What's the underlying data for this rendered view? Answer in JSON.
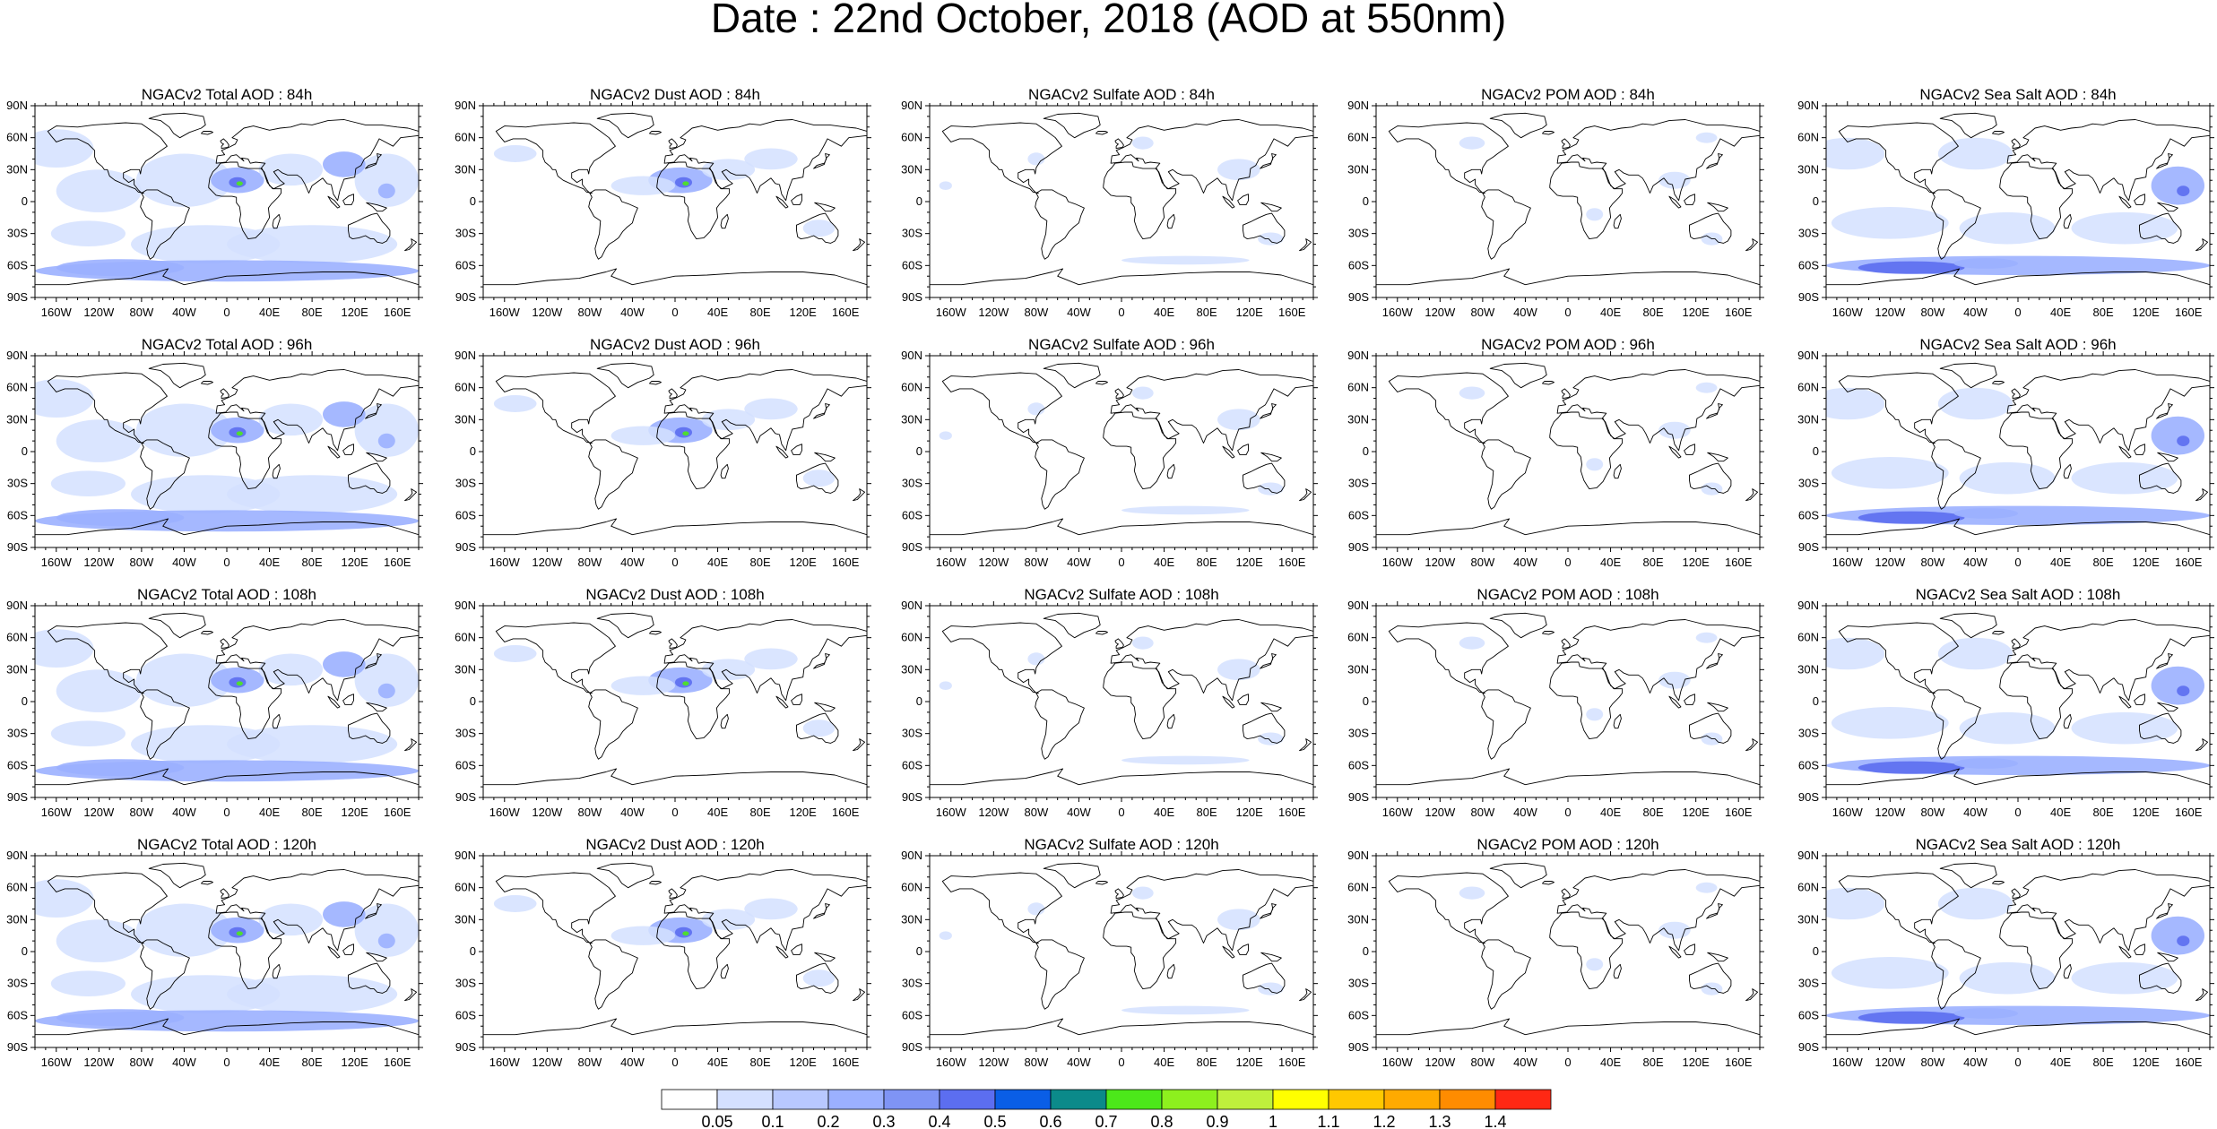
{
  "figure": {
    "title": "Date : 22nd October, 2018 (AOD at 550nm)"
  },
  "axes": {
    "lat_labels": [
      "90N",
      "60N",
      "30N",
      "0",
      "30S",
      "60S",
      "90S"
    ],
    "lon_labels": [
      "160W",
      "120W",
      "80W",
      "40W",
      "0",
      "40E",
      "80E",
      "120E",
      "160E"
    ],
    "lat_range": [
      -90,
      90
    ],
    "lon_range": [
      -180,
      180
    ]
  },
  "columns": [
    "Total",
    "Dust",
    "Sulfate",
    "POM",
    "Sea Salt"
  ],
  "rows": [
    "84h",
    "96h",
    "108h",
    "120h"
  ],
  "panels": [
    {
      "title": "NGACv2 Total AOD : 84h",
      "species": "Total",
      "lead": "84h"
    },
    {
      "title": "NGACv2 Dust AOD : 84h",
      "species": "Dust",
      "lead": "84h"
    },
    {
      "title": "NGACv2 Sulfate AOD : 84h",
      "species": "Sulfate",
      "lead": "84h"
    },
    {
      "title": "NGACv2 POM AOD : 84h",
      "species": "POM",
      "lead": "84h"
    },
    {
      "title": "NGACv2 Sea Salt AOD : 84h",
      "species": "Sea Salt",
      "lead": "84h"
    },
    {
      "title": "NGACv2 Total AOD : 96h",
      "species": "Total",
      "lead": "96h"
    },
    {
      "title": "NGACv2 Dust AOD : 96h",
      "species": "Dust",
      "lead": "96h"
    },
    {
      "title": "NGACv2 Sulfate AOD : 96h",
      "species": "Sulfate",
      "lead": "96h"
    },
    {
      "title": "NGACv2 POM AOD : 96h",
      "species": "POM",
      "lead": "96h"
    },
    {
      "title": "NGACv2 Sea Salt AOD : 96h",
      "species": "Sea Salt",
      "lead": "96h"
    },
    {
      "title": "NGACv2 Total AOD : 108h",
      "species": "Total",
      "lead": "108h"
    },
    {
      "title": "NGACv2 Dust AOD : 108h",
      "species": "Dust",
      "lead": "108h"
    },
    {
      "title": "NGACv2 Sulfate AOD : 108h",
      "species": "Sulfate",
      "lead": "108h"
    },
    {
      "title": "NGACv2 POM AOD : 108h",
      "species": "POM",
      "lead": "108h"
    },
    {
      "title": "NGACv2 Sea Salt AOD : 108h",
      "species": "Sea Salt",
      "lead": "108h"
    },
    {
      "title": "NGACv2 Total AOD : 120h",
      "species": "Total",
      "lead": "120h"
    },
    {
      "title": "NGACv2 Dust AOD : 120h",
      "species": "Dust",
      "lead": "120h"
    },
    {
      "title": "NGACv2 Sulfate AOD : 120h",
      "species": "Sulfate",
      "lead": "120h"
    },
    {
      "title": "NGACv2 POM AOD : 120h",
      "species": "POM",
      "lead": "120h"
    },
    {
      "title": "NGACv2 Sea Salt  AOD : 120h",
      "species": "Sea Salt",
      "lead": "120h"
    }
  ],
  "colorbar": {
    "levels": [
      "0.05",
      "0.1",
      "0.2",
      "0.3",
      "0.4",
      "0.5",
      "0.6",
      "0.7",
      "0.8",
      "0.9",
      "1",
      "1.1",
      "1.2",
      "1.3",
      "1.4"
    ],
    "colors": [
      "#ffffff",
      "#d4e0ff",
      "#b8c8ff",
      "#9bb0ff",
      "#7f94f5",
      "#5c6ef0",
      "#0a5ee6",
      "#0b8a8a",
      "#4ce81a",
      "#8df01e",
      "#bff03c",
      "#ffff00",
      "#ffc800",
      "#ffaa00",
      "#ff8c00",
      "#ff2814"
    ]
  },
  "style": {
    "land_line": "#000000",
    "aod_low": "#d4e0ff",
    "aod_mid": "#9bb0ff",
    "aod_high": "#5c6ef0",
    "aod_peak": "#4ce81a"
  }
}
